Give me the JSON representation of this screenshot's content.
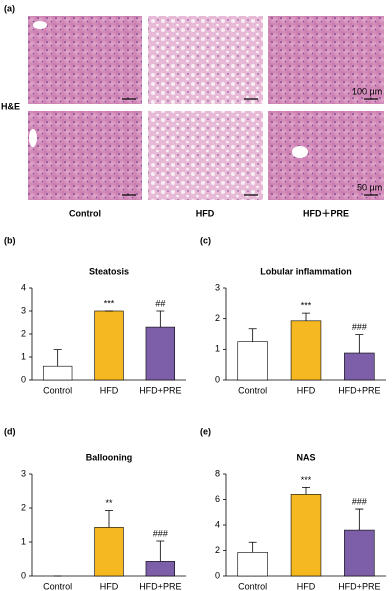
{
  "panel_a": {
    "label": "(a)",
    "stain": "H&E",
    "scale_bars": [
      "100 μm",
      "50 μm"
    ],
    "groups": [
      "Control",
      "HFD",
      "HFD＋PRE"
    ]
  },
  "chart_data": [
    {
      "type": "bar",
      "label": "(b)",
      "title": "Steatosis",
      "categories": [
        "Control",
        "HFD",
        "HFD+PRE"
      ],
      "values": [
        0.6,
        3.0,
        2.3
      ],
      "errors": [
        0.72,
        0,
        0.7
      ],
      "annotations": [
        null,
        "***",
        "##"
      ],
      "colors": [
        "#ffffff",
        "#f5b820",
        "#7d5ea8"
      ],
      "ylim": [
        0,
        4
      ],
      "yticks": [
        0,
        1,
        2,
        3,
        4
      ]
    },
    {
      "type": "bar",
      "label": "(c)",
      "title": "Lobular inflammation",
      "categories": [
        "Control",
        "HFD",
        "HFD+PRE"
      ],
      "values": [
        1.25,
        1.93,
        0.88
      ],
      "errors": [
        0.42,
        0.25,
        0.6
      ],
      "annotations": [
        null,
        "***",
        "###"
      ],
      "colors": [
        "#ffffff",
        "#f5b820",
        "#7d5ea8"
      ],
      "ylim": [
        0,
        3
      ],
      "yticks": [
        0,
        1,
        2,
        3
      ]
    },
    {
      "type": "bar",
      "label": "(d)",
      "title": "Ballooning",
      "categories": [
        "Control",
        "HFD",
        "HFD+PRE"
      ],
      "values": [
        0,
        1.43,
        0.43
      ],
      "errors": [
        0,
        0.5,
        0.6
      ],
      "annotations": [
        null,
        "**",
        "###"
      ],
      "colors": [
        "#ffffff",
        "#f5b820",
        "#7d5ea8"
      ],
      "ylim": [
        0,
        3
      ],
      "yticks": [
        0,
        1,
        2,
        3
      ]
    },
    {
      "type": "bar",
      "label": "(e)",
      "title": "NAS",
      "categories": [
        "Control",
        "HFD",
        "HFD+PRE"
      ],
      "values": [
        1.85,
        6.4,
        3.6
      ],
      "errors": [
        0.8,
        0.55,
        1.65
      ],
      "annotations": [
        null,
        "***",
        "###"
      ],
      "colors": [
        "#ffffff",
        "#f5b820",
        "#7d5ea8"
      ],
      "ylim": [
        0,
        8
      ],
      "yticks": [
        0,
        2,
        4,
        6,
        8
      ]
    }
  ]
}
